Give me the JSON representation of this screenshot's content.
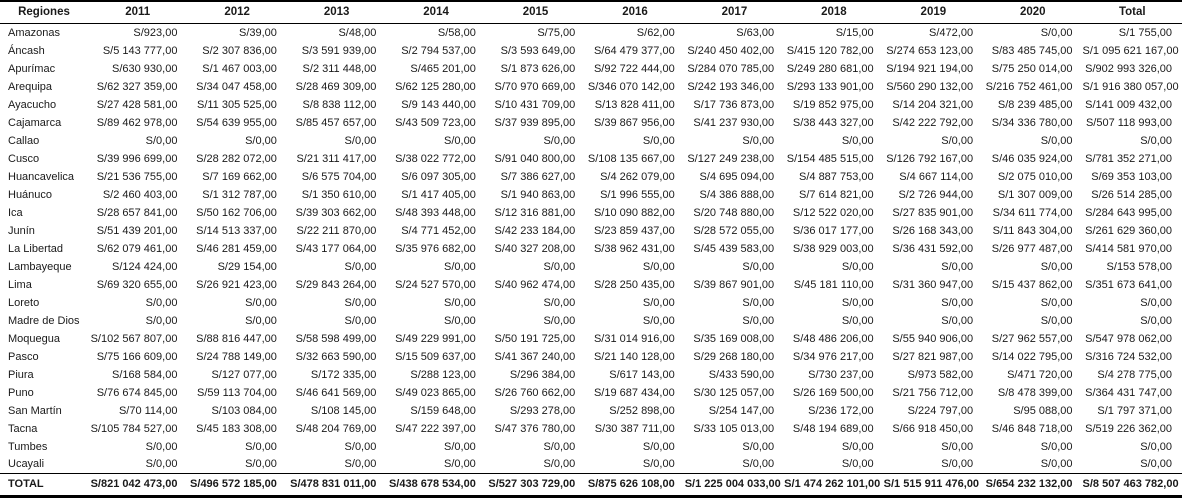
{
  "table": {
    "columns": [
      "Regiones",
      "2011",
      "2012",
      "2013",
      "2014",
      "2015",
      "2016",
      "2017",
      "2018",
      "2019",
      "2020",
      "Total"
    ],
    "rows": [
      {
        "region": "Amazonas",
        "values": [
          "S/923,00",
          "S/39,00",
          "S/48,00",
          "S/58,00",
          "S/75,00",
          "S/62,00",
          "S/63,00",
          "S/15,00",
          "S/472,00",
          "S/0,00",
          "S/1 755,00"
        ]
      },
      {
        "region": "Áncash",
        "values": [
          "S/5 143 777,00",
          "S/2 307 836,00",
          "S/3 591 939,00",
          "S/2 794 537,00",
          "S/3 593 649,00",
          "S/64 479 377,00",
          "S/240 450 402,00",
          "S/415 120 782,00",
          "S/274 653 123,00",
          "S/83 485 745,00",
          "S/1 095 621 167,00"
        ]
      },
      {
        "region": "Apurímac",
        "values": [
          "S/630 930,00",
          "S/1 467 003,00",
          "S/2 311 448,00",
          "S/465 201,00",
          "S/1 873 626,00",
          "S/92 722 444,00",
          "S/284 070 785,00",
          "S/249 280 681,00",
          "S/194 921 194,00",
          "S/75 250 014,00",
          "S/902 993 326,00"
        ]
      },
      {
        "region": "Arequipa",
        "values": [
          "S/62 327 359,00",
          "S/34 047 458,00",
          "S/28 469 309,00",
          "S/62 125 280,00",
          "S/70 970 669,00",
          "S/346 070 142,00",
          "S/242 193 346,00",
          "S/293 133 901,00",
          "S/560 290 132,00",
          "S/216 752 461,00",
          "S/1 916 380 057,00"
        ]
      },
      {
        "region": "Ayacucho",
        "values": [
          "S/27 428 581,00",
          "S/11 305 525,00",
          "S/8 838 112,00",
          "S/9 143 440,00",
          "S/10 431 709,00",
          "S/13 828 411,00",
          "S/17 736 873,00",
          "S/19 852 975,00",
          "S/14 204 321,00",
          "S/8 239 485,00",
          "S/141 009 432,00"
        ]
      },
      {
        "region": "Cajamarca",
        "values": [
          "S/89 462 978,00",
          "S/54 639 955,00",
          "S/85 457 657,00",
          "S/43 509 723,00",
          "S/37 939 895,00",
          "S/39 867 956,00",
          "S/41 237 930,00",
          "S/38 443 327,00",
          "S/42 222 792,00",
          "S/34 336 780,00",
          "S/507 118 993,00"
        ]
      },
      {
        "region": "Callao",
        "values": [
          "S/0,00",
          "S/0,00",
          "S/0,00",
          "S/0,00",
          "S/0,00",
          "S/0,00",
          "S/0,00",
          "S/0,00",
          "S/0,00",
          "S/0,00",
          "S/0,00"
        ]
      },
      {
        "region": "Cusco",
        "values": [
          "S/39 996 699,00",
          "S/28 282 072,00",
          "S/21 311 417,00",
          "S/38 022 772,00",
          "S/91 040 800,00",
          "S/108 135 667,00",
          "S/127 249 238,00",
          "S/154 485 515,00",
          "S/126 792 167,00",
          "S/46 035 924,00",
          "S/781 352 271,00"
        ]
      },
      {
        "region": "Huancavelica",
        "values": [
          "S/21 536 755,00",
          "S/7 169 662,00",
          "S/6 575 704,00",
          "S/6 097 305,00",
          "S/7 386 627,00",
          "S/4 262 079,00",
          "S/4 695 094,00",
          "S/4 887 753,00",
          "S/4 667 114,00",
          "S/2 075 010,00",
          "S/69 353 103,00"
        ]
      },
      {
        "region": "Huánuco",
        "values": [
          "S/2 460 403,00",
          "S/1 312 787,00",
          "S/1 350 610,00",
          "S/1 417 405,00",
          "S/1 940 863,00",
          "S/1 996 555,00",
          "S/4 386 888,00",
          "S/7 614 821,00",
          "S/2 726 944,00",
          "S/1 307 009,00",
          "S/26 514 285,00"
        ]
      },
      {
        "region": "Ica",
        "values": [
          "S/28 657 841,00",
          "S/50 162 706,00",
          "S/39 303 662,00",
          "S/48 393 448,00",
          "S/12 316 881,00",
          "S/10 090 882,00",
          "S/20 748 880,00",
          "S/12 522 020,00",
          "S/27 835 901,00",
          "S/34 611 774,00",
          "S/284 643 995,00"
        ]
      },
      {
        "region": "Junín",
        "values": [
          "S/51 439 201,00",
          "S/14 513 337,00",
          "S/22 211 870,00",
          "S/4 771 452,00",
          "S/42 233 184,00",
          "S/23 859 437,00",
          "S/28 572 055,00",
          "S/36 017 177,00",
          "S/26 168 343,00",
          "S/11 843 304,00",
          "S/261 629 360,00"
        ]
      },
      {
        "region": "La Libertad",
        "values": [
          "S/62 079 461,00",
          "S/46 281 459,00",
          "S/43 177 064,00",
          "S/35 976 682,00",
          "S/40 327 208,00",
          "S/38 962 431,00",
          "S/45 439 583,00",
          "S/38 929 003,00",
          "S/36 431 592,00",
          "S/26 977 487,00",
          "S/414 581 970,00"
        ]
      },
      {
        "region": "Lambayeque",
        "values": [
          "S/124 424,00",
          "S/29 154,00",
          "S/0,00",
          "S/0,00",
          "S/0,00",
          "S/0,00",
          "S/0,00",
          "S/0,00",
          "S/0,00",
          "S/0,00",
          "S/153 578,00"
        ]
      },
      {
        "region": "Lima",
        "values": [
          "S/69 320 655,00",
          "S/26 921 423,00",
          "S/29 843 264,00",
          "S/24 527 570,00",
          "S/40 962 474,00",
          "S/28 250 435,00",
          "S/39 867 901,00",
          "S/45 181 110,00",
          "S/31 360 947,00",
          "S/15 437 862,00",
          "S/351 673 641,00"
        ]
      },
      {
        "region": "Loreto",
        "values": [
          "S/0,00",
          "S/0,00",
          "S/0,00",
          "S/0,00",
          "S/0,00",
          "S/0,00",
          "S/0,00",
          "S/0,00",
          "S/0,00",
          "S/0,00",
          "S/0,00"
        ]
      },
      {
        "region": "Madre de Dios",
        "values": [
          "S/0,00",
          "S/0,00",
          "S/0,00",
          "S/0,00",
          "S/0,00",
          "S/0,00",
          "S/0,00",
          "S/0,00",
          "S/0,00",
          "S/0,00",
          "S/0,00"
        ]
      },
      {
        "region": "Moquegua",
        "values": [
          "S/102 567 807,00",
          "S/88 816 447,00",
          "S/58 598 499,00",
          "S/49 229 991,00",
          "S/50 191 725,00",
          "S/31 014 916,00",
          "S/35 169 008,00",
          "S/48 486 206,00",
          "S/55 940 906,00",
          "S/27 962 557,00",
          "S/547 978 062,00"
        ]
      },
      {
        "region": "Pasco",
        "values": [
          "S/75 166 609,00",
          "S/24 788 149,00",
          "S/32 663 590,00",
          "S/15 509 637,00",
          "S/41 367 240,00",
          "S/21 140 128,00",
          "S/29 268 180,00",
          "S/34 976 217,00",
          "S/27 821 987,00",
          "S/14 022 795,00",
          "S/316 724 532,00"
        ]
      },
      {
        "region": "Piura",
        "values": [
          "S/168 584,00",
          "S/127 077,00",
          "S/172 335,00",
          "S/288 123,00",
          "S/296 384,00",
          "S/617 143,00",
          "S/433 590,00",
          "S/730 237,00",
          "S/973 582,00",
          "S/471 720,00",
          "S/4 278 775,00"
        ]
      },
      {
        "region": "Puno",
        "values": [
          "S/76 674 845,00",
          "S/59 113 704,00",
          "S/46 641 569,00",
          "S/49 023 865,00",
          "S/26 760 662,00",
          "S/19 687 434,00",
          "S/30 125 057,00",
          "S/26 169 500,00",
          "S/21 756 712,00",
          "S/8 478 399,00",
          "S/364 431 747,00"
        ]
      },
      {
        "region": "San Martín",
        "values": [
          "S/70 114,00",
          "S/103 084,00",
          "S/108 145,00",
          "S/159 648,00",
          "S/293 278,00",
          "S/252 898,00",
          "S/254 147,00",
          "S/236 172,00",
          "S/224 797,00",
          "S/95 088,00",
          "S/1 797 371,00"
        ]
      },
      {
        "region": "Tacna",
        "values": [
          "S/105 784 527,00",
          "S/45 183 308,00",
          "S/48 204 769,00",
          "S/47 222 397,00",
          "S/47 376 780,00",
          "S/30 387 711,00",
          "S/33 105 013,00",
          "S/48 194 689,00",
          "S/66 918 450,00",
          "S/46 848 718,00",
          "S/519 226 362,00"
        ]
      },
      {
        "region": "Tumbes",
        "values": [
          "S/0,00",
          "S/0,00",
          "S/0,00",
          "S/0,00",
          "S/0,00",
          "S/0,00",
          "S/0,00",
          "S/0,00",
          "S/0,00",
          "S/0,00",
          "S/0,00"
        ]
      },
      {
        "region": "Ucayali",
        "values": [
          "S/0,00",
          "S/0,00",
          "S/0,00",
          "S/0,00",
          "S/0,00",
          "S/0,00",
          "S/0,00",
          "S/0,00",
          "S/0,00",
          "S/0,00",
          "S/0,00"
        ]
      }
    ],
    "total_row": {
      "region": "TOTAL",
      "values": [
        "S/821 042 473,00",
        "S/496 572 185,00",
        "S/478 831 011,00",
        "S/438 678 534,00",
        "S/527 303 729,00",
        "S/875 626 108,00",
        "S/1 225 004 033,00",
        "S/1 474 262 101,00",
        "S/1 515 911 476,00",
        "S/654 232 132,00",
        "S/8 507 463 782,00"
      ]
    }
  }
}
